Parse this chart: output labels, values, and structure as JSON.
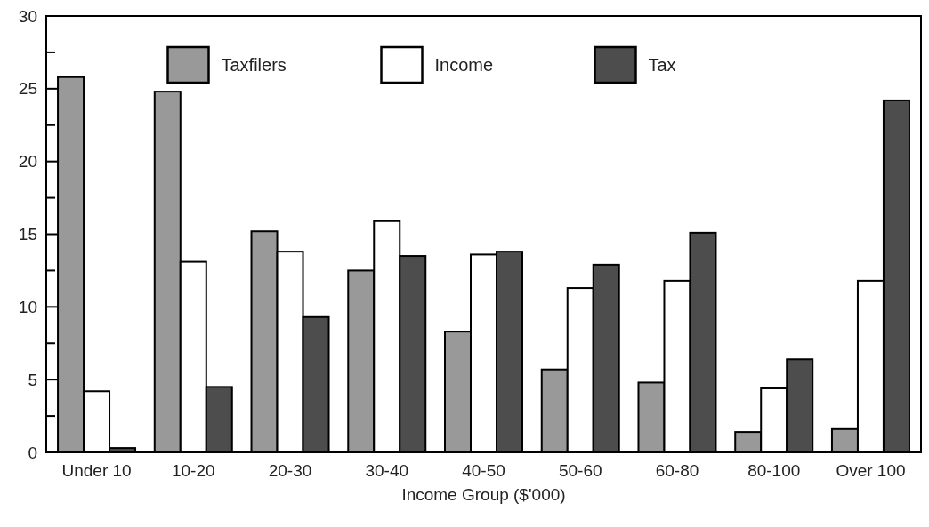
{
  "chart_data": {
    "type": "bar",
    "xlabel": "Income Group ($'000)",
    "categories": [
      "Under 10",
      "10-20",
      "20-30",
      "30-40",
      "40-50",
      "50-60",
      "60-80",
      "80-100",
      "Over 100"
    ],
    "series": [
      {
        "name": "Taxfilers",
        "color": "#999999",
        "values": [
          25.8,
          24.8,
          15.2,
          12.5,
          8.3,
          5.7,
          4.8,
          1.4,
          1.6
        ]
      },
      {
        "name": "Income",
        "color": "#ffffff",
        "values": [
          4.2,
          13.1,
          13.8,
          15.9,
          13.6,
          11.3,
          11.8,
          4.4,
          11.8
        ]
      },
      {
        "name": "Tax",
        "color": "#4d4d4d",
        "values": [
          0.3,
          4.5,
          9.3,
          13.5,
          13.8,
          12.9,
          15.1,
          6.4,
          24.2
        ]
      }
    ],
    "ylim": [
      0,
      30
    ],
    "yticks": [
      0,
      {
        "value": 2.5,
        "label": null
      },
      5,
      {
        "value": 7.5,
        "label": null
      },
      10,
      {
        "value": 12.5,
        "label": null
      },
      15,
      {
        "value": 17.5,
        "label": null
      },
      20,
      {
        "value": 22.5,
        "label": null
      },
      25,
      {
        "value": 27.5,
        "label": null
      },
      30
    ],
    "legend": "top",
    "grid": false
  }
}
